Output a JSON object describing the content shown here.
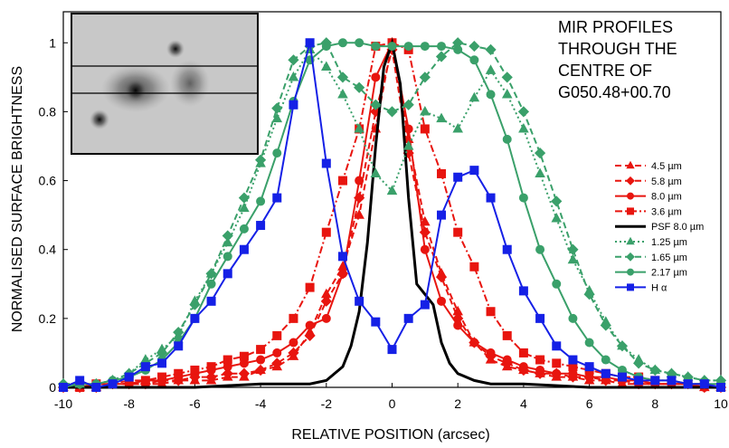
{
  "chart_data": {
    "type": "line",
    "title": [
      "MIR PROFILES",
      "THROUGH THE",
      "CENTRE OF",
      "G050.48+00.70"
    ],
    "x_label": "RELATIVE POSITION (arcsec)",
    "y_label": "NORMALISED SURFACE BRIGHTNESS",
    "xlim": [
      -10,
      10
    ],
    "ylim": [
      0,
      1.09
    ],
    "xticks": [
      -10,
      -8,
      -6,
      -4,
      -2,
      0,
      2,
      4,
      6,
      8,
      10
    ],
    "yticks": [
      0,
      0.2,
      0.4,
      0.6,
      0.8,
      1
    ],
    "legend": "right",
    "x": [
      -10,
      -9.5,
      -9,
      -8.5,
      -8,
      -7.5,
      -7,
      -6.5,
      -6,
      -5.5,
      -5,
      -4.5,
      -4,
      -3.5,
      -3,
      -2.5,
      -2,
      -1.5,
      -1,
      -0.5,
      0,
      0.5,
      1,
      1.5,
      2,
      2.5,
      3,
      3.5,
      4,
      4.5,
      5,
      5.5,
      6,
      6.5,
      7,
      7.5,
      8,
      8.5,
      9,
      9.5,
      10
    ],
    "series": [
      {
        "name": "4.5 µm",
        "color": "#e8150f",
        "marker": "triangle",
        "dash": "dash",
        "values": [
          0,
          0,
          0,
          0.01,
          0.01,
          0.01,
          0.01,
          0.02,
          0.02,
          0.02,
          0.03,
          0.03,
          0.05,
          0.06,
          0.09,
          0.16,
          0.27,
          0.35,
          0.5,
          0.75,
          1,
          0.72,
          0.48,
          0.33,
          0.22,
          0.13,
          0.08,
          0.06,
          0.05,
          0.04,
          0.03,
          0.03,
          0.02,
          0.02,
          0.01,
          0.01,
          0.01,
          0.01,
          0.01,
          0,
          0
        ]
      },
      {
        "name": "5.8 µm",
        "color": "#e8150f",
        "marker": "diamond",
        "dash": "dash",
        "values": [
          0,
          0,
          0,
          0.01,
          0.01,
          0.01,
          0.02,
          0.02,
          0.03,
          0.03,
          0.04,
          0.04,
          0.05,
          0.07,
          0.1,
          0.15,
          0.25,
          0.33,
          0.55,
          0.8,
          0.98,
          0.68,
          0.45,
          0.32,
          0.2,
          0.13,
          0.09,
          0.07,
          0.05,
          0.04,
          0.04,
          0.03,
          0.03,
          0.02,
          0.02,
          0.01,
          0.01,
          0.01,
          0.01,
          0,
          0
        ]
      },
      {
        "name": "8.0 µm",
        "color": "#e8150f",
        "marker": "circle",
        "dash": "solid",
        "values": [
          0,
          0,
          0.01,
          0.01,
          0.01,
          0.02,
          0.02,
          0.03,
          0.04,
          0.05,
          0.06,
          0.07,
          0.08,
          0.1,
          0.13,
          0.18,
          0.2,
          0.33,
          0.6,
          0.9,
          1,
          0.75,
          0.4,
          0.25,
          0.18,
          0.13,
          0.1,
          0.08,
          0.06,
          0.05,
          0.04,
          0.04,
          0.03,
          0.03,
          0.02,
          0.02,
          0.01,
          0.01,
          0.01,
          0,
          0
        ]
      },
      {
        "name": "3.6 µm",
        "color": "#e8150f",
        "marker": "square",
        "dash": "dashdot",
        "values": [
          0,
          0,
          0.01,
          0.01,
          0.02,
          0.02,
          0.03,
          0.04,
          0.05,
          0.06,
          0.08,
          0.09,
          0.11,
          0.15,
          0.2,
          0.29,
          0.45,
          0.6,
          0.75,
          0.99,
          1,
          0.98,
          0.75,
          0.62,
          0.45,
          0.35,
          0.22,
          0.15,
          0.1,
          0.08,
          0.07,
          0.06,
          0.05,
          0.04,
          0.03,
          0.03,
          0.02,
          0.02,
          0.01,
          0.01,
          0
        ]
      },
      {
        "name": "PSF 8.0 µm",
        "color": "#000000",
        "marker": "none",
        "dash": "solid",
        "x": [
          -10,
          -6,
          -4,
          -3,
          -2.5,
          -2,
          -1.75,
          -1.5,
          -1.25,
          -1,
          -0.75,
          -0.5,
          -0.25,
          0,
          0.25,
          0.5,
          0.75,
          1,
          1.25,
          1.5,
          1.75,
          2,
          2.5,
          3,
          4,
          6,
          10
        ],
        "values": [
          0,
          0,
          0.01,
          0.01,
          0.01,
          0.02,
          0.04,
          0.06,
          0.12,
          0.22,
          0.42,
          0.7,
          0.93,
          1,
          0.88,
          0.55,
          0.3,
          0.27,
          0.24,
          0.13,
          0.07,
          0.04,
          0.02,
          0.01,
          0.01,
          0,
          0
        ]
      },
      {
        "name": "1.25 µm",
        "color": "#3aa06a",
        "marker": "triangle",
        "dash": "dot",
        "values": [
          0.01,
          0.01,
          0.01,
          0.02,
          0.04,
          0.08,
          0.11,
          0.15,
          0.25,
          0.33,
          0.42,
          0.52,
          0.65,
          0.78,
          0.9,
          0.98,
          0.93,
          0.85,
          0.75,
          0.62,
          0.57,
          0.7,
          0.8,
          0.78,
          0.75,
          0.84,
          0.92,
          0.85,
          0.75,
          0.62,
          0.49,
          0.37,
          0.28,
          0.19,
          0.12,
          0.08,
          0.05,
          0.04,
          0.03,
          0.02,
          0.02
        ]
      },
      {
        "name": "1.65 µm",
        "color": "#3aa06a",
        "marker": "diamond",
        "dash": "dash",
        "values": [
          0.01,
          0.01,
          0.01,
          0.02,
          0.04,
          0.07,
          0.1,
          0.16,
          0.24,
          0.33,
          0.44,
          0.55,
          0.66,
          0.81,
          0.95,
          0.99,
          1,
          0.9,
          0.87,
          0.82,
          0.8,
          0.82,
          0.9,
          0.96,
          1,
          0.99,
          0.98,
          0.9,
          0.8,
          0.68,
          0.54,
          0.4,
          0.27,
          0.18,
          0.12,
          0.07,
          0.05,
          0.04,
          0.03,
          0.02,
          0.02
        ]
      },
      {
        "name": "2.17 µm",
        "color": "#3aa06a",
        "marker": "circle",
        "dash": "solid",
        "values": [
          0,
          0.01,
          0.01,
          0.02,
          0.03,
          0.05,
          0.08,
          0.13,
          0.2,
          0.3,
          0.38,
          0.46,
          0.54,
          0.68,
          0.83,
          0.95,
          0.99,
          1,
          1,
          0.99,
          0.99,
          0.99,
          0.99,
          0.99,
          0.98,
          0.95,
          0.85,
          0.72,
          0.55,
          0.4,
          0.3,
          0.2,
          0.13,
          0.08,
          0.05,
          0.03,
          0.02,
          0.02,
          0.01,
          0.01,
          0.01
        ]
      },
      {
        "name": "H α",
        "color": "#1520e6",
        "marker": "square",
        "dash": "solid",
        "values": [
          0,
          0.02,
          0,
          0.01,
          0.03,
          0.06,
          0.07,
          0.12,
          0.2,
          0.25,
          0.33,
          0.4,
          0.47,
          0.55,
          0.82,
          1,
          0.65,
          0.38,
          0.25,
          0.19,
          0.11,
          0.2,
          0.24,
          0.5,
          0.61,
          0.63,
          0.55,
          0.4,
          0.28,
          0.2,
          0.12,
          0.08,
          0.06,
          0.04,
          0.03,
          0.02,
          0.02,
          0.02,
          0.01,
          0.01,
          0
        ]
      }
    ]
  }
}
